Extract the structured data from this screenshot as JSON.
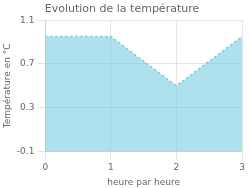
{
  "chart_data": {
    "type": "area",
    "title": "Evolution de la température",
    "xlabel": "heure par heure",
    "ylabel": "Température en °C",
    "x": [
      0,
      1,
      2,
      3
    ],
    "values": [
      0.95,
      0.95,
      0.5,
      0.95
    ],
    "color": "#6cc8df",
    "line_style": "dotted",
    "xlim": [
      0,
      3
    ],
    "ylim": [
      -0.1,
      1.1
    ],
    "xticks": [
      0,
      1,
      2,
      3
    ],
    "yticks": [
      -0.1,
      0.3,
      0.7,
      1.1
    ],
    "grid": true
  }
}
